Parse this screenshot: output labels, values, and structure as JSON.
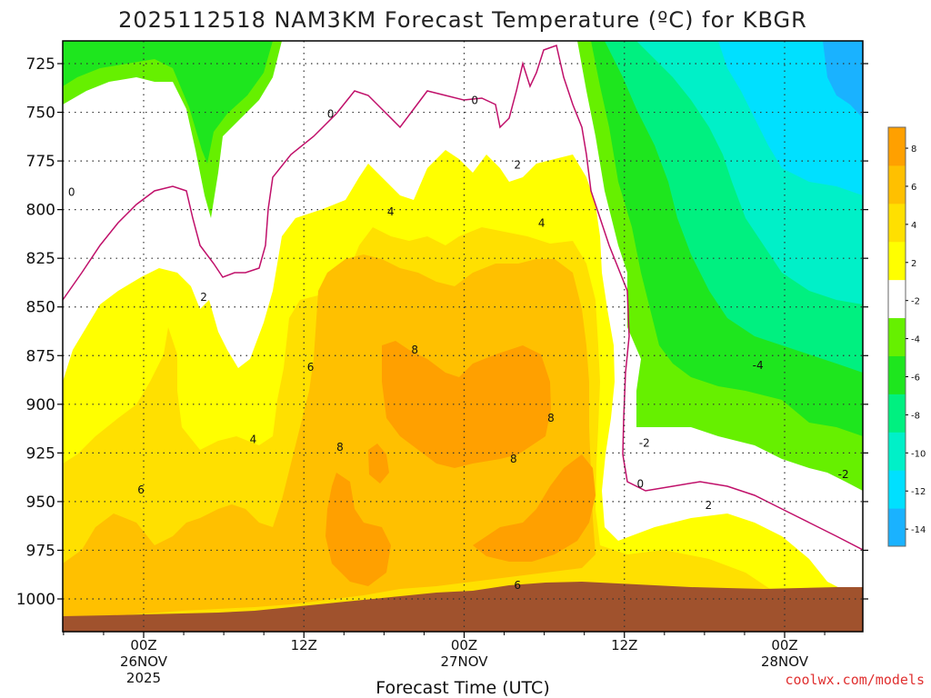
{
  "chart_data": {
    "type": "contour",
    "title": "2025112518 NAM3KM Forecast Temperature (ºC) for KBGR",
    "xlabel": "Forecast Time (UTC)",
    "ylabel": "",
    "credit": "coolwx.com/models",
    "y_axis": {
      "scale": "pressure_hPa_inverted",
      "ylim": [
        1015,
        712
      ],
      "ticks": [
        725,
        750,
        775,
        800,
        825,
        850,
        875,
        900,
        925,
        950,
        975,
        1000
      ],
      "tick_labels": [
        "725",
        "750",
        "775",
        "800",
        "825",
        "850",
        "875",
        "900",
        "925",
        "950",
        "975",
        "1000"
      ]
    },
    "x_axis": {
      "unit": "hours since 2025112518",
      "xlim": [
        0,
        60
      ],
      "ticks": [
        {
          "hour": 6,
          "lines": [
            "00Z",
            "26NOV",
            "2025"
          ]
        },
        {
          "hour": 18,
          "lines": [
            "12Z"
          ]
        },
        {
          "hour": 30,
          "lines": [
            "00Z",
            "27NOV"
          ]
        },
        {
          "hour": 42,
          "lines": [
            "12Z"
          ]
        },
        {
          "hour": 54,
          "lines": [
            "00Z",
            "28NOV"
          ]
        }
      ]
    },
    "grid": true,
    "colorbar": {
      "position": "right",
      "ticks": [
        "-14",
        "-12",
        "-10",
        "-8",
        "-6",
        "-4",
        "-2",
        "2",
        "4",
        "6",
        "8"
      ],
      "colors": [
        "#1ab2ff",
        "#00e0ff",
        "#00f0c8",
        "#00f080",
        "#1ee61e",
        "#66f000",
        "#ffffff",
        "#ffff00",
        "#ffe000",
        "#ffc000",
        "#ffa000"
      ]
    },
    "fill_colors": {
      "minus6": "#1ee61e",
      "minus4": "#66f000",
      "minus2": "#ffffff",
      "plus2": "#ffff00",
      "plus4": "#ffe000",
      "plus6": "#ffc000",
      "plus8": "#ffa000",
      "minus8": "#00f080",
      "minus10": "#00f0c8",
      "minus12": "#00e0ff",
      "minus14": "#1ab2ff",
      "ground": "#a0522d",
      "zero_line": "#c0106a"
    },
    "contour_labels": [
      {
        "value": "0",
        "hour": 0.6,
        "p": 791
      },
      {
        "value": "0",
        "hour": 20.0,
        "p": 751
      },
      {
        "value": "0",
        "hour": 30.8,
        "p": 744
      },
      {
        "value": "0",
        "hour": 43.2,
        "p": 941
      },
      {
        "value": "2",
        "hour": 10.5,
        "p": 845
      },
      {
        "value": "2",
        "hour": 34.0,
        "p": 777
      },
      {
        "value": "2",
        "hour": 48.3,
        "p": 952
      },
      {
        "value": "-2",
        "hour": 43.5,
        "p": 920
      },
      {
        "value": "-2",
        "hour": 58.4,
        "p": 936
      },
      {
        "value": "4",
        "hour": 24.5,
        "p": 801
      },
      {
        "value": "4",
        "hour": 35.8,
        "p": 807
      },
      {
        "value": "4",
        "hour": 14.2,
        "p": 918
      },
      {
        "value": "-4",
        "hour": 52.0,
        "p": 880
      },
      {
        "value": "6",
        "hour": 18.5,
        "p": 881
      },
      {
        "value": "6",
        "hour": 5.8,
        "p": 944
      },
      {
        "value": "6",
        "hour": 34.0,
        "p": 993
      },
      {
        "value": "8",
        "hour": 26.3,
        "p": 872
      },
      {
        "value": "8",
        "hour": 20.7,
        "p": 922
      },
      {
        "value": "8",
        "hour": 33.7,
        "p": 928
      },
      {
        "value": "8",
        "hour": 36.5,
        "p": 907
      }
    ]
  }
}
